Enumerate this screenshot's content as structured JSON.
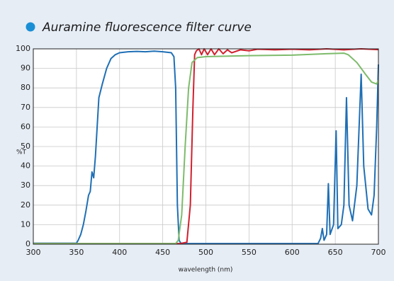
{
  "chart_data": {
    "type": "line",
    "title": "Auramine fluorescence filter curve",
    "x_label": "wavelength (nm)",
    "y_label": "%T",
    "xlim": [
      300,
      700
    ],
    "xticks": [
      300,
      350,
      400,
      450,
      500,
      550,
      600,
      650,
      700
    ],
    "ylim": [
      0,
      100
    ],
    "yticks": [
      0,
      10,
      20,
      30,
      40,
      50,
      60,
      70,
      80,
      90,
      100
    ],
    "grid": true,
    "series": [
      {
        "color": "#1f6fb5",
        "x": [
          300,
          350,
          352,
          355,
          358,
          361,
          364,
          366,
          368,
          370,
          372,
          374,
          376,
          380,
          385,
          390,
          395,
          400,
          410,
          420,
          430,
          440,
          450,
          460,
          463,
          465,
          467,
          469,
          471,
          480,
          630,
          633,
          635,
          637,
          640,
          642,
          644,
          648,
          651,
          653,
          657,
          660,
          663,
          666,
          670,
          675,
          680,
          683,
          688,
          692,
          695,
          698,
          700
        ],
        "values": [
          0.5,
          0.5,
          2,
          5,
          10,
          17,
          25,
          27,
          37,
          34,
          45,
          60,
          75,
          82,
          90,
          95,
          97,
          98,
          98.5,
          98.7,
          98.5,
          98.8,
          98.5,
          98,
          96,
          80,
          20,
          2,
          0.5,
          0.3,
          0.3,
          3,
          8,
          2,
          5,
          31,
          5,
          10,
          58,
          8,
          10,
          20,
          75,
          20,
          12,
          30,
          87,
          40,
          18,
          15,
          25,
          60,
          92
        ]
      },
      {
        "color": "#d0202e",
        "x": [
          300,
          470,
          478,
          482,
          485,
          487,
          489,
          492,
          495,
          498,
          502,
          506,
          510,
          515,
          520,
          525,
          530,
          540,
          550,
          560,
          580,
          600,
          620,
          640,
          660,
          680,
          700
        ],
        "values": [
          0.3,
          0.3,
          1,
          20,
          70,
          97,
          99,
          100,
          97,
          100,
          97,
          100,
          97,
          100,
          97.5,
          99.5,
          98,
          99.5,
          99,
          99.8,
          99.5,
          99.8,
          99.5,
          100,
          99.5,
          100,
          99.6
        ]
      },
      {
        "color": "#7dbb6b",
        "x": [
          300,
          465,
          468,
          472,
          476,
          480,
          484,
          490,
          500,
          550,
          600,
          640,
          660,
          665,
          675,
          685,
          692,
          698,
          700
        ],
        "values": [
          0.3,
          0.3,
          2,
          15,
          50,
          80,
          93,
          95.5,
          96,
          96.5,
          96.8,
          97.5,
          97.8,
          97,
          93,
          87,
          83,
          82,
          84
        ]
      }
    ]
  }
}
